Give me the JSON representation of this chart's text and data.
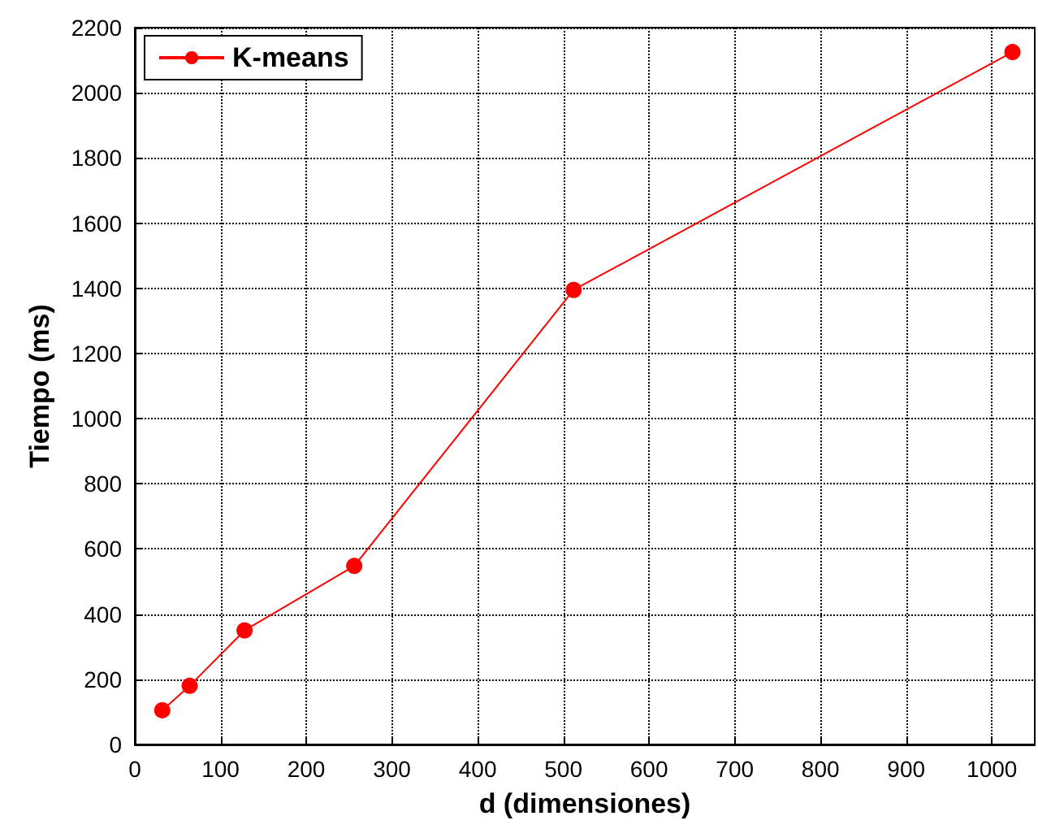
{
  "chart_data": {
    "type": "line",
    "xlabel": "d (dimensiones)",
    "ylabel": "Tiempo (ms)",
    "x": [
      32,
      64,
      128,
      256,
      512,
      1024
    ],
    "series": [
      {
        "name": "K-means",
        "color": "#ff0000",
        "values": [
          105,
          180,
          350,
          548,
          1395,
          2125
        ]
      }
    ],
    "xlim": [
      0,
      1050
    ],
    "xticks": [
      0,
      100,
      200,
      300,
      400,
      500,
      600,
      700,
      800,
      900,
      1000
    ],
    "ylim": [
      0,
      2200
    ],
    "yticks": [
      0,
      200,
      400,
      600,
      800,
      1000,
      1200,
      1400,
      1600,
      1800,
      2000,
      2200
    ],
    "grid": true,
    "legend": "top left",
    "marker": "circle",
    "line_style": "solid"
  }
}
